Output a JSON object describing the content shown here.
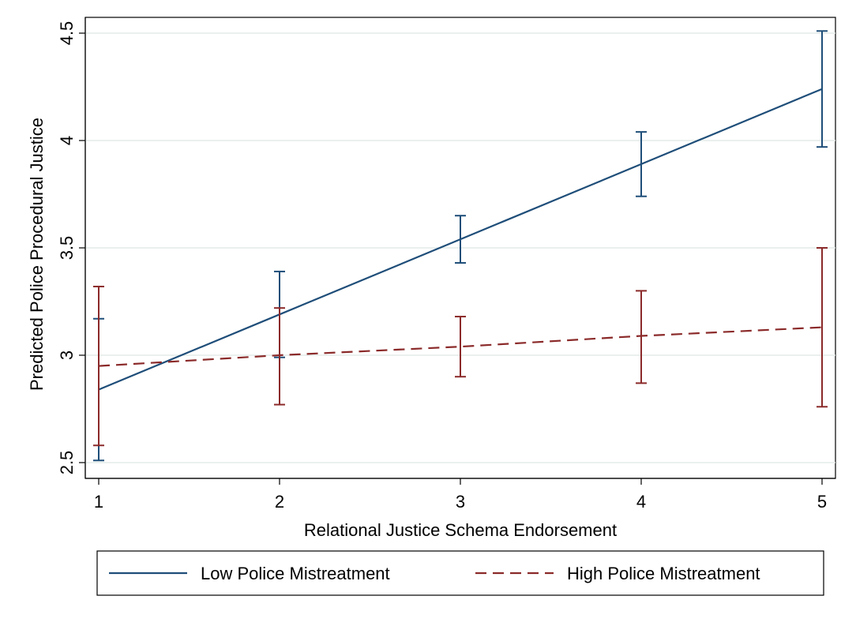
{
  "chart_data": {
    "type": "line",
    "xlabel": "Relational Justice Schema Endorsement",
    "ylabel": "Predicted Police Procedural Justice",
    "x": [
      1,
      2,
      3,
      4,
      5
    ],
    "xlim": [
      1,
      5
    ],
    "ylim": [
      2.5,
      4.5
    ],
    "xticks": [
      "1",
      "2",
      "3",
      "4",
      "5"
    ],
    "yticks": [
      "2.5",
      "3",
      "3.5",
      "4",
      "4.5"
    ],
    "grid": true,
    "legend_position": "bottom",
    "series": [
      {
        "name": "Low Police Mistreatment",
        "color": "#1f4e79",
        "line_style": "solid",
        "values": [
          2.84,
          3.19,
          3.54,
          3.89,
          4.24
        ],
        "ci_low": [
          2.51,
          2.99,
          3.43,
          3.74,
          3.97
        ],
        "ci_high": [
          3.17,
          3.39,
          3.65,
          4.04,
          4.51
        ]
      },
      {
        "name": "High Police Mistreatment",
        "color": "#8b2a2a",
        "line_style": "dashed",
        "values": [
          2.95,
          3.0,
          3.04,
          3.09,
          3.13
        ],
        "ci_low": [
          2.58,
          2.77,
          2.9,
          2.87,
          2.76
        ],
        "ci_high": [
          3.32,
          3.22,
          3.18,
          3.3,
          3.5
        ]
      }
    ]
  }
}
